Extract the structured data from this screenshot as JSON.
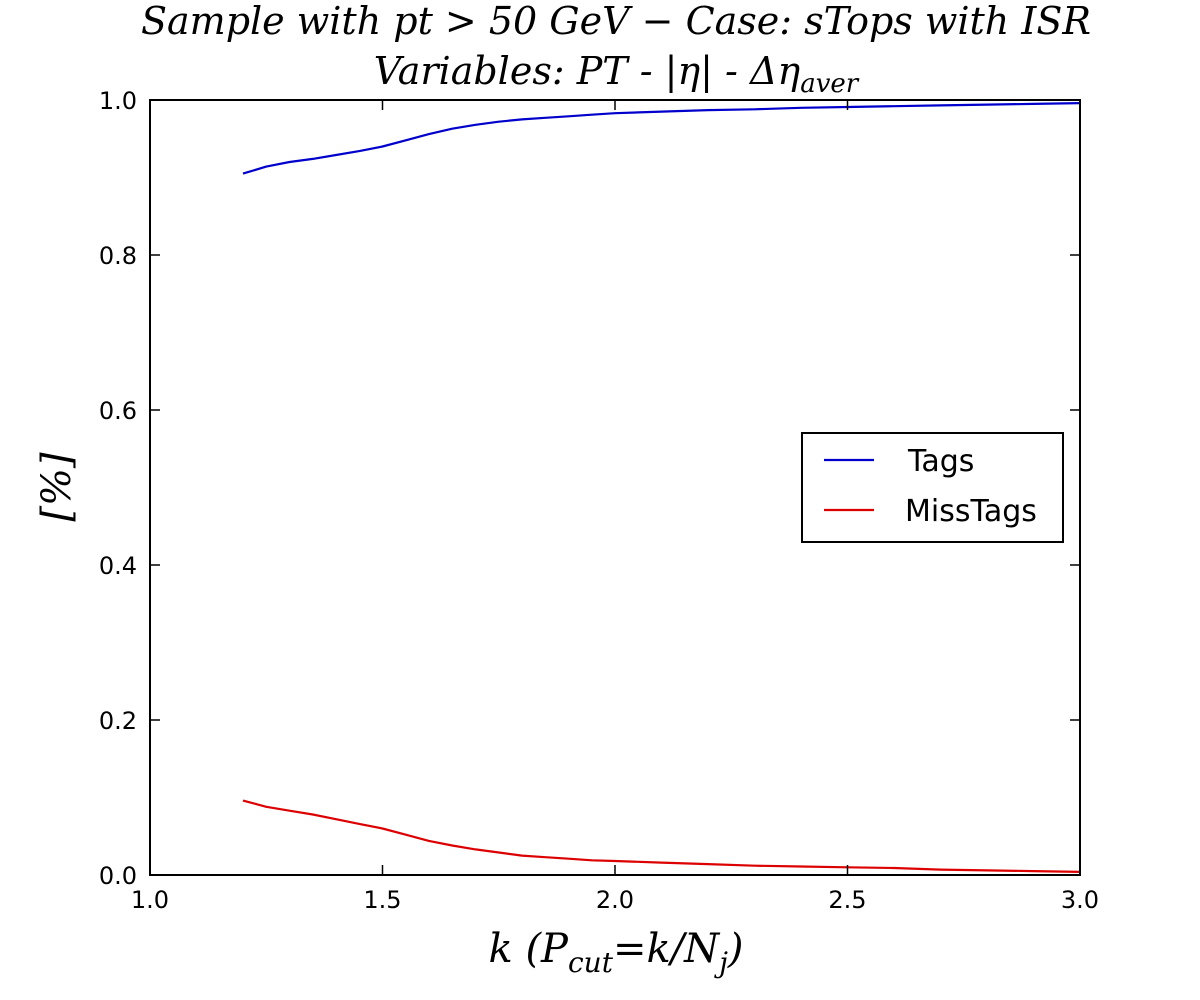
{
  "chart_data": {
    "type": "line",
    "title": "Sample with pt > 50 GeV − Case: sTops with ISR",
    "subtitle": "Variables: PT - |η| - Δη_aver",
    "title_line1": "Sample with pt  > 50 GeV − Case: sTops with ISR",
    "title_line2_main": "Variables: PT - |η| - Δη",
    "title_line2_sub": "aver",
    "xlabel_main": "k (P",
    "xlabel_sub1": "cut",
    "xlabel_mid": "=k/N",
    "xlabel_sub2": "j",
    "xlabel_end": ")",
    "xlabel": "k (P_cut = k/N_j)",
    "ylabel": "[%]",
    "xlim": [
      1.0,
      3.0
    ],
    "ylim": [
      0.0,
      1.0
    ],
    "xticks": [
      1.0,
      1.5,
      2.0,
      2.5,
      3.0
    ],
    "xtick_labels": [
      "1.0",
      "1.5",
      "2.0",
      "2.5",
      "3.0"
    ],
    "yticks": [
      0.0,
      0.2,
      0.4,
      0.6,
      0.8,
      1.0
    ],
    "ytick_labels": [
      "0.0",
      "0.2",
      "0.4",
      "0.6",
      "0.8",
      "1.0"
    ],
    "grid": false,
    "legend_position": "center-right",
    "series": [
      {
        "name": "Tags",
        "color": "#0000cc",
        "x": [
          1.2,
          1.25,
          1.3,
          1.35,
          1.4,
          1.45,
          1.5,
          1.55,
          1.6,
          1.65,
          1.7,
          1.75,
          1.8,
          1.85,
          1.9,
          1.95,
          2.0,
          2.1,
          2.2,
          2.3,
          2.4,
          2.5,
          2.6,
          2.7,
          2.8,
          2.9,
          3.0
        ],
        "y": [
          0.905,
          0.914,
          0.92,
          0.924,
          0.929,
          0.934,
          0.94,
          0.948,
          0.956,
          0.963,
          0.968,
          0.972,
          0.975,
          0.977,
          0.979,
          0.981,
          0.983,
          0.985,
          0.987,
          0.988,
          0.99,
          0.991,
          0.992,
          0.993,
          0.994,
          0.995,
          0.996
        ]
      },
      {
        "name": "MissTags",
        "color": "#dd0000",
        "x": [
          1.2,
          1.25,
          1.3,
          1.35,
          1.4,
          1.45,
          1.5,
          1.55,
          1.6,
          1.65,
          1.7,
          1.75,
          1.8,
          1.85,
          1.9,
          1.95,
          2.0,
          2.1,
          2.2,
          2.3,
          2.4,
          2.5,
          2.6,
          2.7,
          2.8,
          2.9,
          3.0
        ],
        "y": [
          0.096,
          0.088,
          0.083,
          0.078,
          0.072,
          0.066,
          0.06,
          0.052,
          0.044,
          0.038,
          0.033,
          0.029,
          0.025,
          0.023,
          0.021,
          0.019,
          0.018,
          0.016,
          0.014,
          0.012,
          0.011,
          0.01,
          0.009,
          0.007,
          0.006,
          0.005,
          0.004
        ]
      }
    ]
  }
}
